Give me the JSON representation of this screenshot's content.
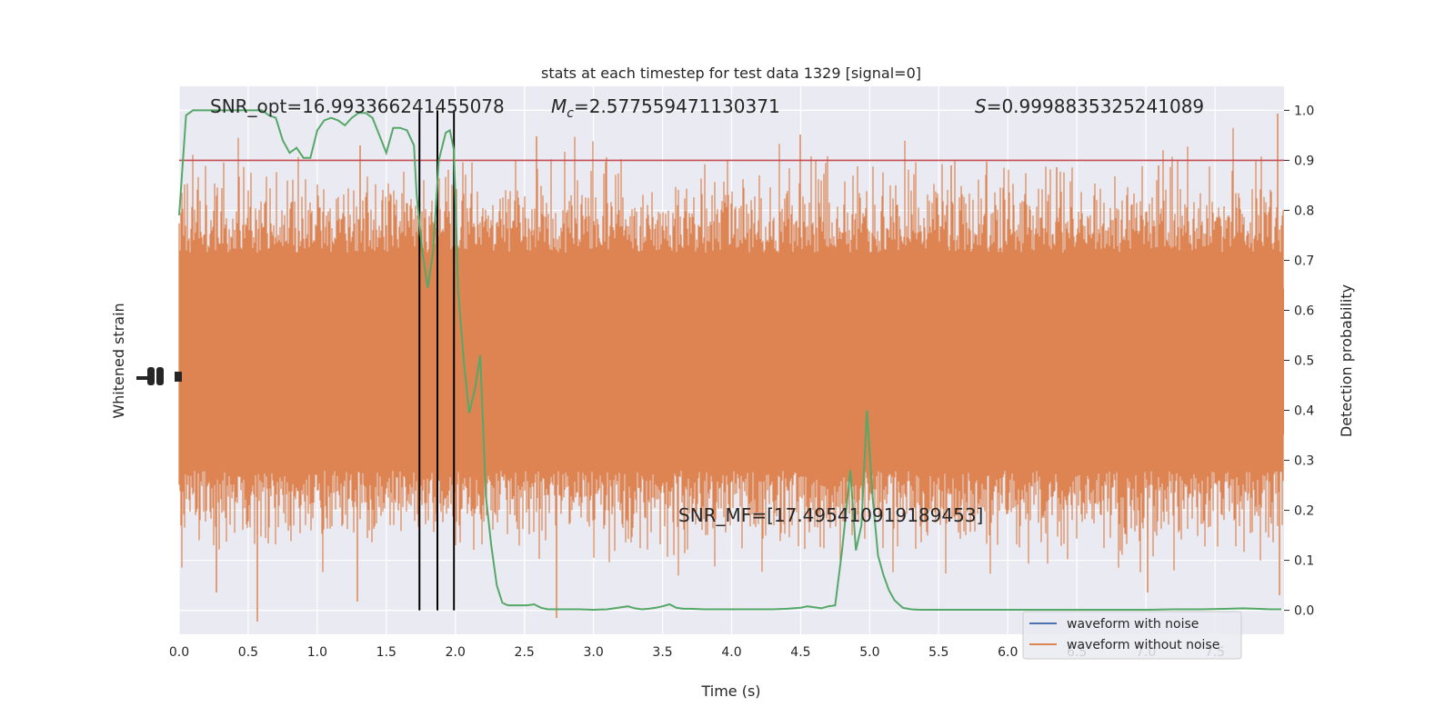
{
  "chart_data": {
    "type": "line",
    "title": "stats at each timestep for test data 1329 [signal=0]",
    "xlabel": "Time (s)",
    "ylabel_left": "Whitened strain",
    "ylabel_right": "Detection probability",
    "xlim": [
      0,
      8.0
    ],
    "ylim_right": [
      -0.048,
      1.048
    ],
    "x_ticks": [
      "0.0",
      "0.5",
      "1.0",
      "1.5",
      "2.0",
      "2.5",
      "3.0",
      "3.5",
      "4.0",
      "4.5",
      "5.0",
      "5.5",
      "6.0",
      "6.5",
      "7.0",
      "7.5"
    ],
    "y_ticks_right": [
      "0.0",
      "0.1",
      "0.2",
      "0.3",
      "0.4",
      "0.5",
      "0.6",
      "0.7",
      "0.8",
      "0.9",
      "1.0"
    ],
    "grid": true,
    "annotations": {
      "snr_opt": "SNR_opt=16.993366241455078",
      "mc_symbol": "M",
      "mc_sub": "c",
      "mc_value": "=2.577559471130371",
      "s_symbol": "S",
      "s_value": "=0.9998835325241089",
      "snr_mf": "SNR_MF=[17.495410919189453]"
    },
    "threshold": {
      "y": 0.9,
      "color": "#c44e52"
    },
    "vlines": [
      1.74,
      1.87,
      1.99
    ],
    "legend": {
      "position": "lower-right",
      "entries": [
        {
          "label": "waveform with noise",
          "color": "#4c72b0"
        },
        {
          "label": "waveform without noise",
          "color": "#dd8452"
        }
      ]
    },
    "noise_color": "#dd8452",
    "prob_color": "#55a868",
    "prob_series": {
      "name": "",
      "x": [
        0.0,
        0.05,
        0.1,
        0.15,
        0.2,
        0.3,
        0.4,
        0.5,
        0.6,
        0.65,
        0.7,
        0.75,
        0.8,
        0.85,
        0.9,
        0.95,
        1.0,
        1.05,
        1.1,
        1.15,
        1.2,
        1.25,
        1.3,
        1.35,
        1.4,
        1.45,
        1.5,
        1.55,
        1.6,
        1.65,
        1.7,
        1.72,
        1.76,
        1.8,
        1.84,
        1.88,
        1.93,
        1.96,
        1.99,
        2.02,
        2.06,
        2.1,
        2.14,
        2.18,
        2.22,
        2.26,
        2.3,
        2.34,
        2.38,
        2.42,
        2.47,
        2.52,
        2.57,
        2.62,
        2.67,
        2.72,
        2.77,
        2.82,
        2.9,
        3.0,
        3.1,
        3.2,
        3.25,
        3.3,
        3.35,
        3.4,
        3.45,
        3.5,
        3.55,
        3.6,
        3.65,
        3.7,
        3.8,
        3.9,
        4.0,
        4.1,
        4.2,
        4.3,
        4.4,
        4.5,
        4.55,
        4.6,
        4.65,
        4.7,
        4.75,
        4.8,
        4.86,
        4.9,
        4.94,
        4.98,
        5.02,
        5.06,
        5.1,
        5.14,
        5.18,
        5.24,
        5.3,
        5.36,
        5.42,
        5.5,
        5.6,
        5.8,
        6.0,
        6.2,
        6.4,
        6.6,
        6.8,
        7.0,
        7.2,
        7.4,
        7.6,
        7.7,
        7.8,
        7.9,
        7.98
      ],
      "y": [
        0.79,
        0.99,
        1.0,
        1.0,
        1.0,
        1.0,
        1.0,
        1.0,
        1.0,
        0.99,
        0.985,
        0.94,
        0.915,
        0.925,
        0.905,
        0.905,
        0.96,
        0.98,
        0.985,
        0.98,
        0.97,
        0.985,
        0.995,
        0.995,
        0.985,
        0.95,
        0.915,
        0.965,
        0.965,
        0.96,
        0.93,
        0.83,
        0.72,
        0.645,
        0.72,
        0.9,
        0.955,
        0.96,
        0.92,
        0.64,
        0.5,
        0.395,
        0.44,
        0.51,
        0.23,
        0.13,
        0.05,
        0.015,
        0.01,
        0.01,
        0.01,
        0.01,
        0.012,
        0.005,
        0.002,
        0.002,
        0.002,
        0.002,
        0.002,
        0.001,
        0.002,
        0.006,
        0.008,
        0.004,
        0.002,
        0.003,
        0.005,
        0.008,
        0.012,
        0.005,
        0.003,
        0.003,
        0.002,
        0.002,
        0.002,
        0.002,
        0.002,
        0.002,
        0.003,
        0.005,
        0.008,
        0.006,
        0.004,
        0.008,
        0.01,
        0.12,
        0.28,
        0.12,
        0.17,
        0.4,
        0.23,
        0.11,
        0.07,
        0.04,
        0.02,
        0.005,
        0.002,
        0.001,
        0.001,
        0.001,
        0.001,
        0.001,
        0.001,
        0.001,
        0.001,
        0.001,
        0.001,
        0.001,
        0.002,
        0.002,
        0.003,
        0.004,
        0.003,
        0.002,
        0.002
      ]
    }
  }
}
